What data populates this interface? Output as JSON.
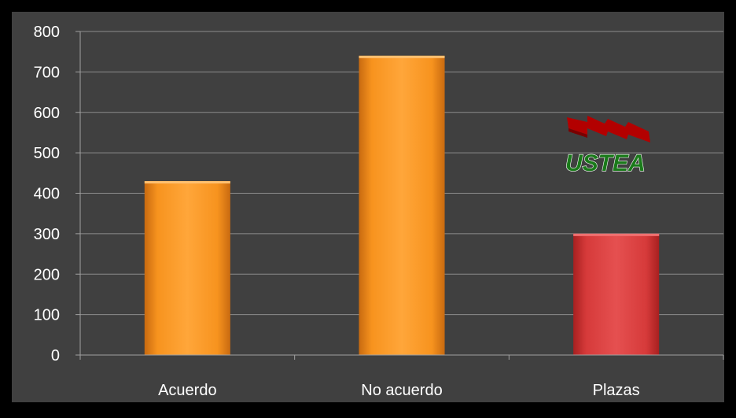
{
  "colors": {
    "background": "#000000",
    "plot_area": "#404040",
    "gridline": "#8c8c8c",
    "axis": "#a0a0a0",
    "tick_text": "#ffffff",
    "bar_orange": "#f7931e",
    "bar_red": "#d63a3a",
    "logo_red": "#b30000",
    "logo_green": "#1a7a1a"
  },
  "chart_data": {
    "type": "bar",
    "title": "",
    "xlabel": "",
    "ylabel": "",
    "categories": [
      "Acuerdo",
      "No acuerdo",
      "Plazas"
    ],
    "values": [
      430,
      740,
      300
    ],
    "bar_colors": [
      "#f7931e",
      "#f7931e",
      "#d63a3a"
    ],
    "ylim": [
      0,
      800
    ],
    "yticks": [
      "0",
      "100",
      "200",
      "300",
      "400",
      "500",
      "600",
      "700",
      "800"
    ],
    "grid": true,
    "legend": "none"
  },
  "logo": {
    "text": "USTEA",
    "icon": "ustea-flag-logo"
  }
}
